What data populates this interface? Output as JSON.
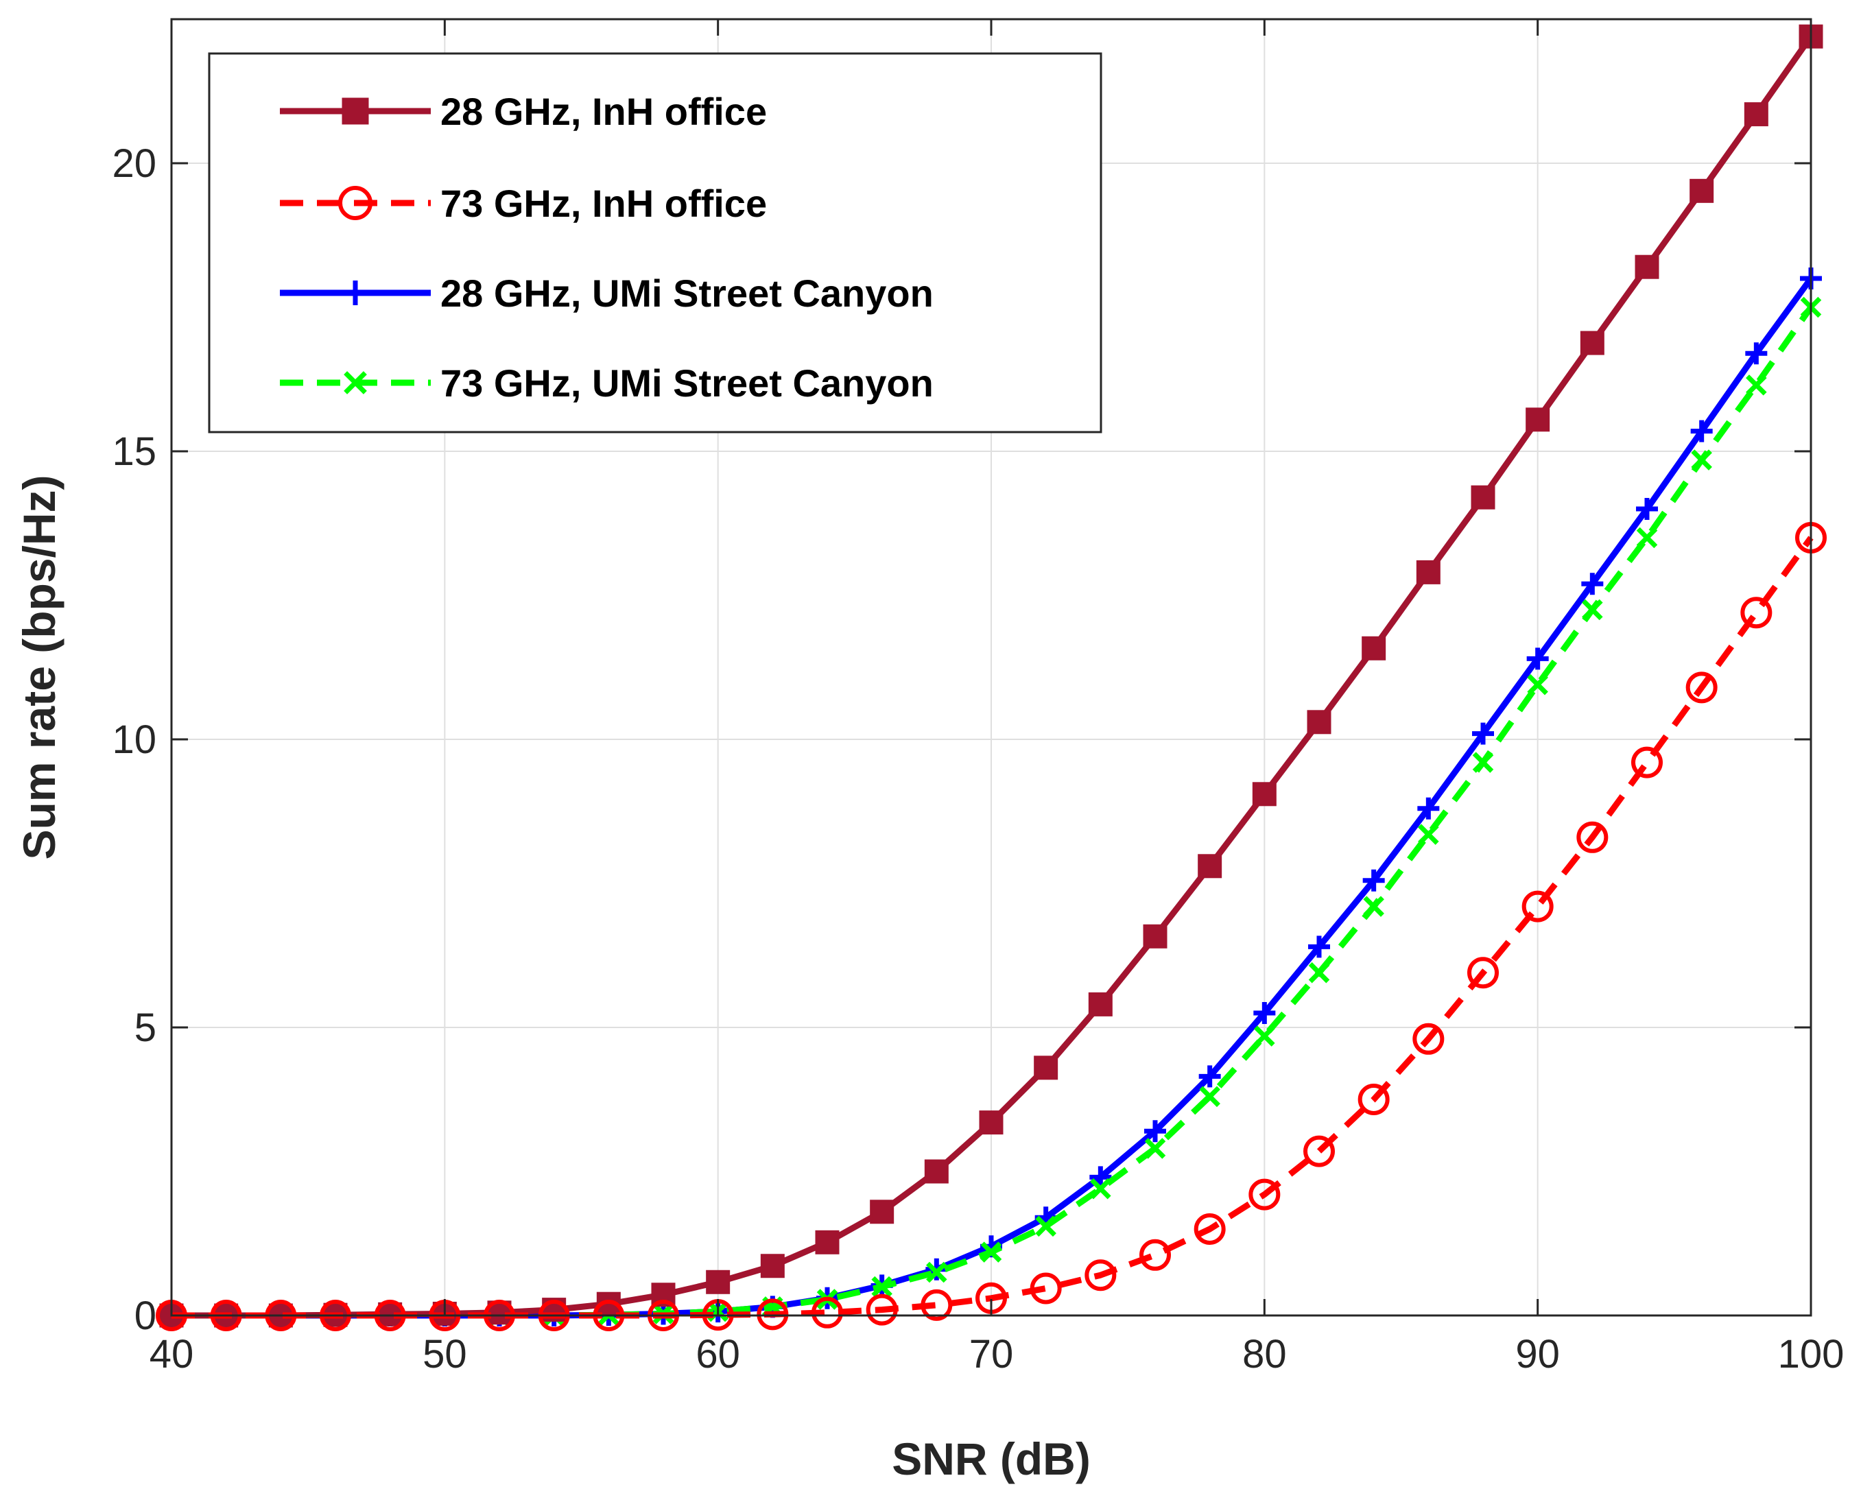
{
  "chart_data": {
    "type": "line",
    "title": "",
    "xlabel": "SNR (dB)",
    "ylabel": "Sum rate (bps/Hz)",
    "xlim": [
      40,
      100
    ],
    "ylim": [
      0,
      22.5
    ],
    "grid": true,
    "legend_position": "top-left",
    "x_ticks": [
      40,
      50,
      60,
      70,
      80,
      90,
      100
    ],
    "y_ticks": [
      0,
      5,
      10,
      15,
      20
    ],
    "x_tick_labels": [
      "40",
      "50",
      "60",
      "70",
      "80",
      "90",
      "100"
    ],
    "y_tick_labels": [
      "0",
      "5",
      "10",
      "15",
      "20"
    ],
    "x": [
      40,
      42,
      44,
      46,
      48,
      50,
      52,
      54,
      56,
      58,
      60,
      62,
      64,
      66,
      68,
      70,
      72,
      74,
      76,
      78,
      80,
      82,
      84,
      86,
      88,
      90,
      92,
      94,
      96,
      98,
      100
    ],
    "series": [
      {
        "name": "28 GHz, InH office",
        "color": "#a2142f",
        "line_style": "solid",
        "marker": "square",
        "values": [
          0.0,
          0.0,
          0.0,
          0.01,
          0.02,
          0.03,
          0.05,
          0.1,
          0.2,
          0.36,
          0.58,
          0.86,
          1.27,
          1.8,
          2.5,
          3.35,
          4.3,
          5.4,
          6.58,
          7.8,
          9.05,
          10.3,
          11.58,
          12.9,
          14.2,
          15.55,
          16.88,
          18.2,
          19.52,
          20.85,
          22.2
        ]
      },
      {
        "name": "73 GHz, InH office",
        "color": "#ff0000",
        "line_style": "dashed",
        "marker": "circle",
        "values": [
          0.0,
          0.0,
          0.0,
          0.0,
          0.0,
          0.0,
          0.0,
          0.0,
          0.0,
          0.0,
          0.01,
          0.02,
          0.05,
          0.1,
          0.18,
          0.3,
          0.47,
          0.7,
          1.05,
          1.5,
          2.1,
          2.85,
          3.75,
          4.8,
          5.95,
          7.1,
          8.3,
          9.6,
          10.9,
          12.2,
          13.5
        ]
      },
      {
        "name": "28 GHz, UMi Street Canyon",
        "color": "#0000ff",
        "line_style": "solid",
        "marker": "plus",
        "values": [
          0.0,
          0.0,
          0.0,
          0.0,
          0.0,
          0.0,
          0.0,
          0.0,
          0.01,
          0.03,
          0.07,
          0.15,
          0.3,
          0.52,
          0.8,
          1.2,
          1.7,
          2.4,
          3.2,
          4.15,
          5.25,
          6.4,
          7.55,
          8.8,
          10.1,
          11.4,
          12.7,
          14.0,
          15.35,
          16.7,
          18.0
        ]
      },
      {
        "name": "73 GHz, UMi Street Canyon",
        "color": "#00ff00",
        "line_style": "dashed",
        "marker": "x",
        "values": [
          0.0,
          0.0,
          0.0,
          0.0,
          0.0,
          0.0,
          0.0,
          0.0,
          0.01,
          0.03,
          0.07,
          0.15,
          0.28,
          0.5,
          0.75,
          1.1,
          1.55,
          2.2,
          2.9,
          3.8,
          4.85,
          5.95,
          7.1,
          8.35,
          9.6,
          10.95,
          12.25,
          13.5,
          14.85,
          16.15,
          17.5
        ]
      }
    ]
  }
}
